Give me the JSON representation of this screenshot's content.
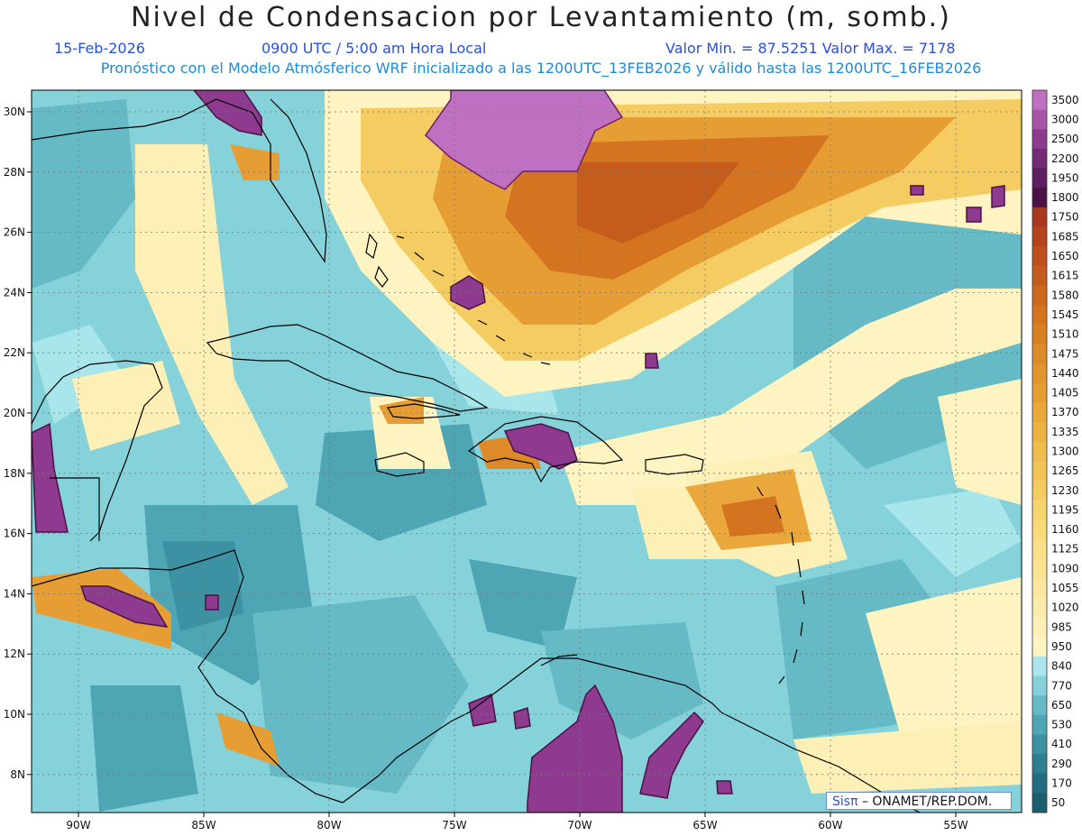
{
  "header": {
    "title": "Nivel de Condensacion por Levantamiento (m, somb.)",
    "date": "15-Feb-2026",
    "time": "0900 UTC / 5:00 am Hora Local",
    "min_max": "Valor Min. = 87.5251  Valor Max. = 7178",
    "forecast_info": "Pronóstico con el Modelo Atmósferico WRF inicializado a las 1200UTC_13FEB2026 y válido hasta las  1200UTC_16FEB2026"
  },
  "axes": {
    "lat_labels": [
      "30N",
      "28N",
      "26N",
      "24N",
      "22N",
      "20N",
      "18N",
      "16N",
      "14N",
      "12N",
      "10N",
      "8N"
    ],
    "lat_values": [
      30,
      28,
      26,
      24,
      22,
      20,
      18,
      16,
      14,
      12,
      10,
      8
    ],
    "lon_labels": [
      "90W",
      "85W",
      "80W",
      "75W",
      "70W",
      "65W",
      "60W",
      "55W"
    ],
    "lon_values": [
      -90,
      -85,
      -80,
      -75,
      -70,
      -65,
      -60,
      -55
    ]
  },
  "colorbar": {
    "levels": [
      "3500",
      "3000",
      "2500",
      "2200",
      "1950",
      "1800",
      "1750",
      "1685",
      "1650",
      "1615",
      "1580",
      "1545",
      "1510",
      "1475",
      "1440",
      "1405",
      "1370",
      "1335",
      "1300",
      "1265",
      "1230",
      "1195",
      "1160",
      "1125",
      "1090",
      "1055",
      "1020",
      "985",
      "950",
      "840",
      "770",
      "650",
      "530",
      "410",
      "290",
      "170",
      "50"
    ],
    "colors": [
      "#c070c0",
      "#a855a8",
      "#8e3a8e",
      "#742a74",
      "#5e1f5e",
      "#4a1244",
      "#a8381e",
      "#b4441c",
      "#be501c",
      "#c65c1c",
      "#ce681e",
      "#d47420",
      "#da8024",
      "#de8a28",
      "#e2942e",
      "#e69e34",
      "#eaa83c",
      "#eeb244",
      "#f0bc4e",
      "#f2c458",
      "#f4cc62",
      "#f6d46e",
      "#f8da7a",
      "#f9e086",
      "#fae492",
      "#fbe89e",
      "#fcecaa",
      "#fdf0b6",
      "#fef4c2",
      "#a8e6ec",
      "#86d2da",
      "#66bac6",
      "#4ea6b4",
      "#3c92a2",
      "#2e8090",
      "#226e80",
      "#1a5e70"
    ]
  },
  "watermark": {
    "sis": "Sisπ",
    "org": "– ONAMET/REP.DOM."
  }
}
